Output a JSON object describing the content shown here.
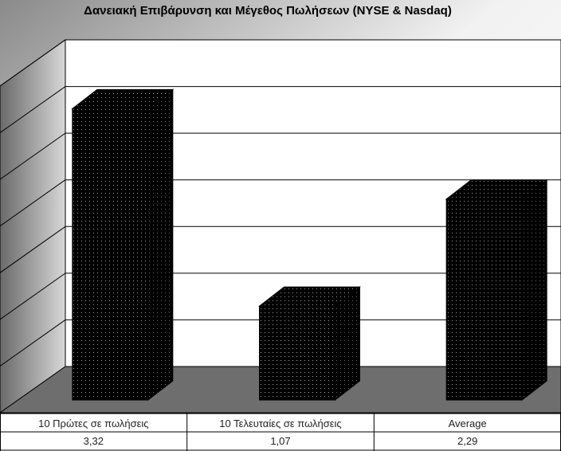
{
  "chart_data": {
    "type": "bar",
    "title": "Δανειακή Επιβάρυνση και Μέγεθος Πωλήσεων (NYSE & Nasdaq)",
    "categories": [
      "10 Πρώτες σε πωλήσεις",
      "10 Τελευταίες σε πωλήσεις",
      "Average"
    ],
    "values": [
      3.32,
      1.07,
      2.29
    ],
    "value_labels": [
      "3,32",
      "1,07",
      "2,29"
    ],
    "ylim": [
      0,
      3.5
    ],
    "ystep": 0.5,
    "grid": true,
    "legend": "none",
    "style": "3d-column",
    "colors": {
      "bar": "#000000",
      "bar_dots": "#9a9a9a",
      "wall_light": "#ffffff",
      "wall_dark": "#8c8c8c",
      "floor": "#6e6e6e"
    }
  }
}
